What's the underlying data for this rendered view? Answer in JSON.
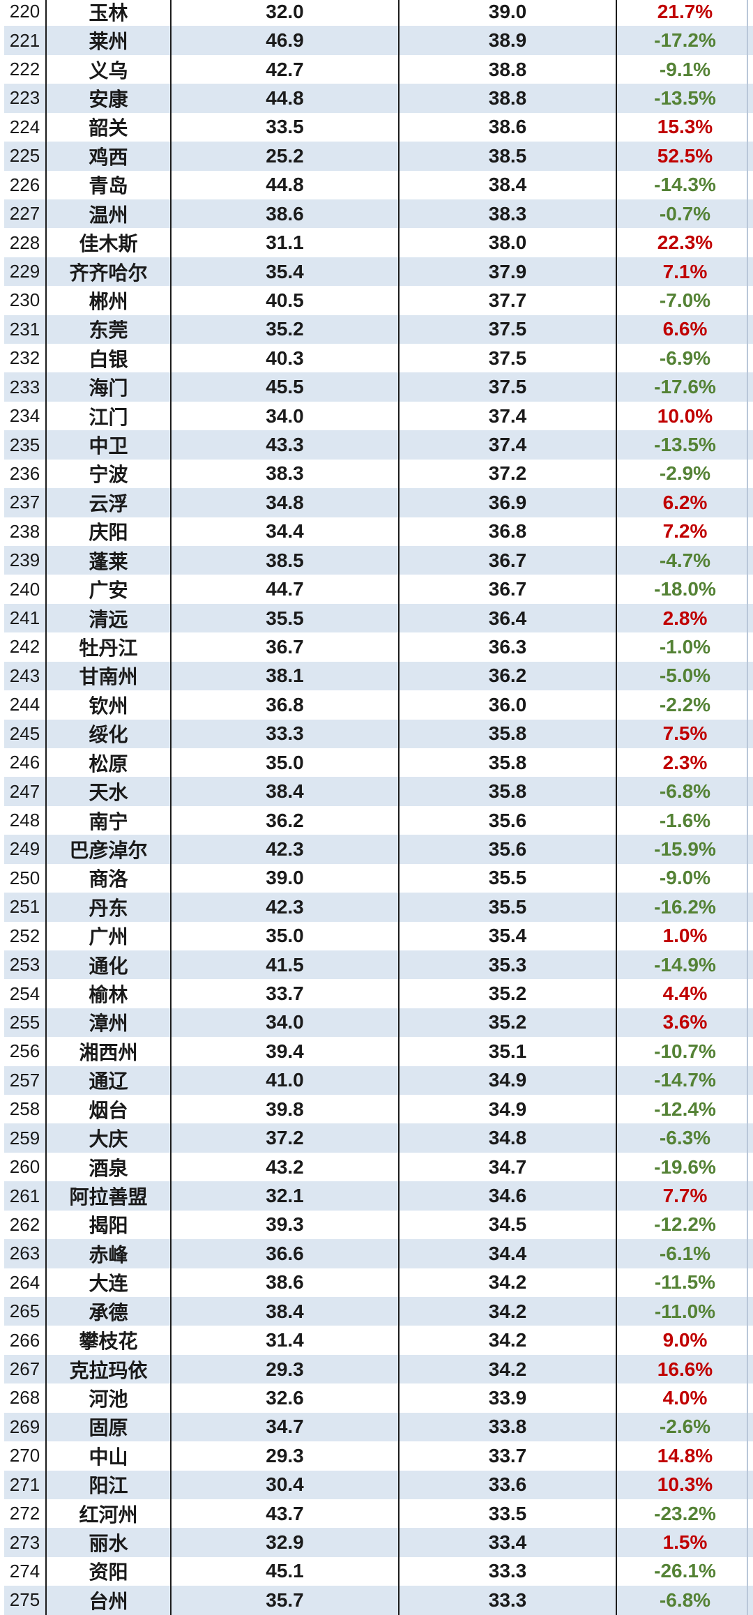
{
  "chart_data": {
    "type": "table",
    "title": "",
    "columns": [
      "rank",
      "city",
      "v1",
      "v2",
      "pct"
    ],
    "stripe_color": "#dce6f1",
    "row_color": "#ffffff",
    "positive_color": "#c00000",
    "negative_color": "#548235",
    "border_color": "#1c1c1c",
    "rows": [
      {
        "rank": "220",
        "city": "玉林",
        "v1": "32.0",
        "v2": "39.0",
        "pct": "21.7%"
      },
      {
        "rank": "221",
        "city": "莱州",
        "v1": "46.9",
        "v2": "38.9",
        "pct": "-17.2%"
      },
      {
        "rank": "222",
        "city": "义乌",
        "v1": "42.7",
        "v2": "38.8",
        "pct": "-9.1%"
      },
      {
        "rank": "223",
        "city": "安康",
        "v1": "44.8",
        "v2": "38.8",
        "pct": "-13.5%"
      },
      {
        "rank": "224",
        "city": "韶关",
        "v1": "33.5",
        "v2": "38.6",
        "pct": "15.3%"
      },
      {
        "rank": "225",
        "city": "鸡西",
        "v1": "25.2",
        "v2": "38.5",
        "pct": "52.5%"
      },
      {
        "rank": "226",
        "city": "青岛",
        "v1": "44.8",
        "v2": "38.4",
        "pct": "-14.3%"
      },
      {
        "rank": "227",
        "city": "温州",
        "v1": "38.6",
        "v2": "38.3",
        "pct": "-0.7%"
      },
      {
        "rank": "228",
        "city": "佳木斯",
        "v1": "31.1",
        "v2": "38.0",
        "pct": "22.3%"
      },
      {
        "rank": "229",
        "city": "齐齐哈尔",
        "v1": "35.4",
        "v2": "37.9",
        "pct": "7.1%"
      },
      {
        "rank": "230",
        "city": "郴州",
        "v1": "40.5",
        "v2": "37.7",
        "pct": "-7.0%"
      },
      {
        "rank": "231",
        "city": "东莞",
        "v1": "35.2",
        "v2": "37.5",
        "pct": "6.6%"
      },
      {
        "rank": "232",
        "city": "白银",
        "v1": "40.3",
        "v2": "37.5",
        "pct": "-6.9%"
      },
      {
        "rank": "233",
        "city": "海门",
        "v1": "45.5",
        "v2": "37.5",
        "pct": "-17.6%"
      },
      {
        "rank": "234",
        "city": "江门",
        "v1": "34.0",
        "v2": "37.4",
        "pct": "10.0%"
      },
      {
        "rank": "235",
        "city": "中卫",
        "v1": "43.3",
        "v2": "37.4",
        "pct": "-13.5%"
      },
      {
        "rank": "236",
        "city": "宁波",
        "v1": "38.3",
        "v2": "37.2",
        "pct": "-2.9%"
      },
      {
        "rank": "237",
        "city": "云浮",
        "v1": "34.8",
        "v2": "36.9",
        "pct": "6.2%"
      },
      {
        "rank": "238",
        "city": "庆阳",
        "v1": "34.4",
        "v2": "36.8",
        "pct": "7.2%"
      },
      {
        "rank": "239",
        "city": "蓬莱",
        "v1": "38.5",
        "v2": "36.7",
        "pct": "-4.7%"
      },
      {
        "rank": "240",
        "city": "广安",
        "v1": "44.7",
        "v2": "36.7",
        "pct": "-18.0%"
      },
      {
        "rank": "241",
        "city": "清远",
        "v1": "35.5",
        "v2": "36.4",
        "pct": "2.8%"
      },
      {
        "rank": "242",
        "city": "牡丹江",
        "v1": "36.7",
        "v2": "36.3",
        "pct": "-1.0%"
      },
      {
        "rank": "243",
        "city": "甘南州",
        "v1": "38.1",
        "v2": "36.2",
        "pct": "-5.0%"
      },
      {
        "rank": "244",
        "city": "钦州",
        "v1": "36.8",
        "v2": "36.0",
        "pct": "-2.2%"
      },
      {
        "rank": "245",
        "city": "绥化",
        "v1": "33.3",
        "v2": "35.8",
        "pct": "7.5%"
      },
      {
        "rank": "246",
        "city": "松原",
        "v1": "35.0",
        "v2": "35.8",
        "pct": "2.3%"
      },
      {
        "rank": "247",
        "city": "天水",
        "v1": "38.4",
        "v2": "35.8",
        "pct": "-6.8%"
      },
      {
        "rank": "248",
        "city": "南宁",
        "v1": "36.2",
        "v2": "35.6",
        "pct": "-1.6%"
      },
      {
        "rank": "249",
        "city": "巴彦淖尔",
        "v1": "42.3",
        "v2": "35.6",
        "pct": "-15.9%"
      },
      {
        "rank": "250",
        "city": "商洛",
        "v1": "39.0",
        "v2": "35.5",
        "pct": "-9.0%"
      },
      {
        "rank": "251",
        "city": "丹东",
        "v1": "42.3",
        "v2": "35.5",
        "pct": "-16.2%"
      },
      {
        "rank": "252",
        "city": "广州",
        "v1": "35.0",
        "v2": "35.4",
        "pct": "1.0%"
      },
      {
        "rank": "253",
        "city": "通化",
        "v1": "41.5",
        "v2": "35.3",
        "pct": "-14.9%"
      },
      {
        "rank": "254",
        "city": "榆林",
        "v1": "33.7",
        "v2": "35.2",
        "pct": "4.4%"
      },
      {
        "rank": "255",
        "city": "漳州",
        "v1": "34.0",
        "v2": "35.2",
        "pct": "3.6%"
      },
      {
        "rank": "256",
        "city": "湘西州",
        "v1": "39.4",
        "v2": "35.1",
        "pct": "-10.7%"
      },
      {
        "rank": "257",
        "city": "通辽",
        "v1": "41.0",
        "v2": "34.9",
        "pct": "-14.7%"
      },
      {
        "rank": "258",
        "city": "烟台",
        "v1": "39.8",
        "v2": "34.9",
        "pct": "-12.4%"
      },
      {
        "rank": "259",
        "city": "大庆",
        "v1": "37.2",
        "v2": "34.8",
        "pct": "-6.3%"
      },
      {
        "rank": "260",
        "city": "酒泉",
        "v1": "43.2",
        "v2": "34.7",
        "pct": "-19.6%"
      },
      {
        "rank": "261",
        "city": "阿拉善盟",
        "v1": "32.1",
        "v2": "34.6",
        "pct": "7.7%"
      },
      {
        "rank": "262",
        "city": "揭阳",
        "v1": "39.3",
        "v2": "34.5",
        "pct": "-12.2%"
      },
      {
        "rank": "263",
        "city": "赤峰",
        "v1": "36.6",
        "v2": "34.4",
        "pct": "-6.1%"
      },
      {
        "rank": "264",
        "city": "大连",
        "v1": "38.6",
        "v2": "34.2",
        "pct": "-11.5%"
      },
      {
        "rank": "265",
        "city": "承德",
        "v1": "38.4",
        "v2": "34.2",
        "pct": "-11.0%"
      },
      {
        "rank": "266",
        "city": "攀枝花",
        "v1": "31.4",
        "v2": "34.2",
        "pct": "9.0%"
      },
      {
        "rank": "267",
        "city": "克拉玛依",
        "v1": "29.3",
        "v2": "34.2",
        "pct": "16.6%"
      },
      {
        "rank": "268",
        "city": "河池",
        "v1": "32.6",
        "v2": "33.9",
        "pct": "4.0%"
      },
      {
        "rank": "269",
        "city": "固原",
        "v1": "34.7",
        "v2": "33.8",
        "pct": "-2.6%"
      },
      {
        "rank": "270",
        "city": "中山",
        "v1": "29.3",
        "v2": "33.7",
        "pct": "14.8%"
      },
      {
        "rank": "271",
        "city": "阳江",
        "v1": "30.4",
        "v2": "33.6",
        "pct": "10.3%"
      },
      {
        "rank": "272",
        "city": "红河州",
        "v1": "43.7",
        "v2": "33.5",
        "pct": "-23.2%"
      },
      {
        "rank": "273",
        "city": "丽水",
        "v1": "32.9",
        "v2": "33.4",
        "pct": "1.5%"
      },
      {
        "rank": "274",
        "city": "资阳",
        "v1": "45.1",
        "v2": "33.3",
        "pct": "-26.1%"
      },
      {
        "rank": "275",
        "city": "台州",
        "v1": "35.7",
        "v2": "33.3",
        "pct": "-6.8%"
      }
    ]
  }
}
